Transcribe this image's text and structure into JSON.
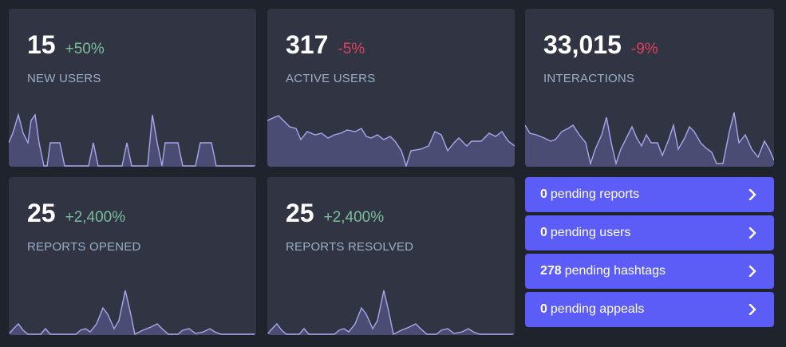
{
  "metrics": [
    {
      "value": "15",
      "delta": "+50%",
      "delta_type": "pos",
      "label": "NEW USERS"
    },
    {
      "value": "317",
      "delta": "-5%",
      "delta_type": "neg",
      "label": "ACTIVE USERS"
    },
    {
      "value": "33,015",
      "delta": "-9%",
      "delta_type": "neg",
      "label": "INTERACTIONS"
    },
    {
      "value": "25",
      "delta": "+2,400%",
      "delta_type": "pos",
      "label": "REPORTS OPENED"
    },
    {
      "value": "25",
      "delta": "+2,400%",
      "delta_type": "pos",
      "label": "REPORTS RESOLVED"
    }
  ],
  "pending": [
    {
      "count": "0",
      "text": "pending reports"
    },
    {
      "count": "0",
      "text": "pending users"
    },
    {
      "count": "278",
      "text": "pending hashtags"
    },
    {
      "count": "0",
      "text": "pending appeals"
    }
  ],
  "colors": {
    "background": "#1f232b",
    "card": "#313543",
    "positive": "#79bd9a",
    "negative": "#df405a",
    "label": "#9baec8",
    "accent": "#5c5cf7",
    "spark_fill": "#4a4c74",
    "spark_line": "#a9a7e9"
  },
  "icons": {
    "pending_arrow": "chevron-right-icon"
  }
}
